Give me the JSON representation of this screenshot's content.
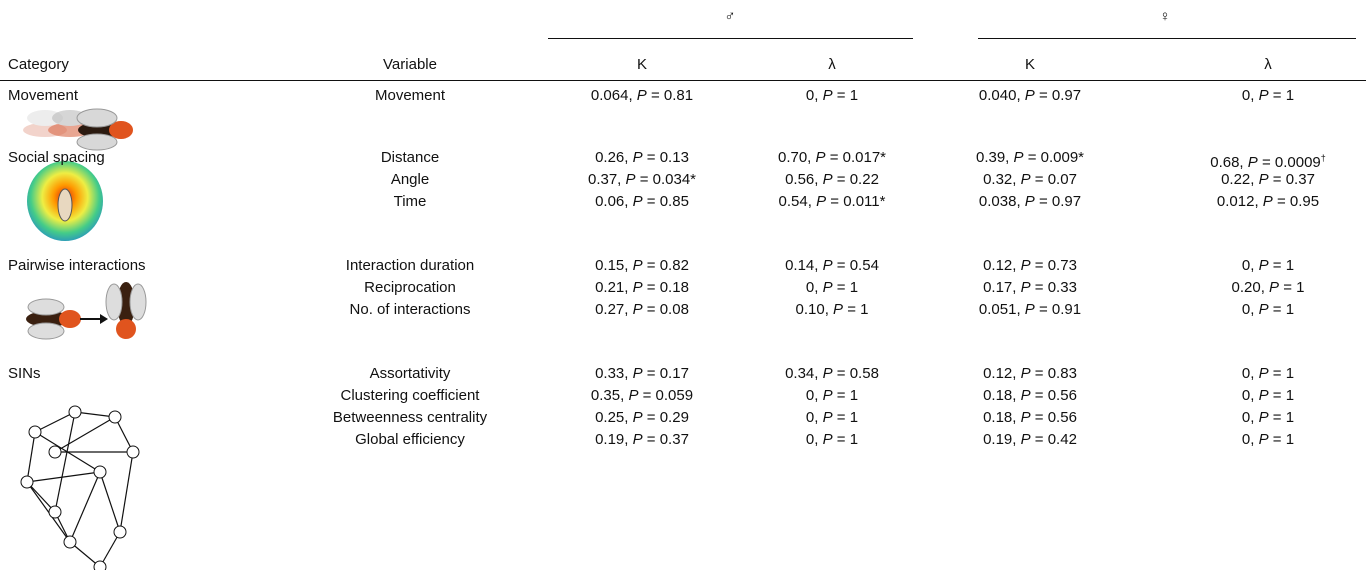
{
  "header": {
    "male": "♂",
    "female": "♀",
    "columns": [
      "Category",
      "Variable",
      "K",
      "λ",
      "K",
      "λ"
    ]
  },
  "groups": [
    {
      "category": "Movement",
      "rows": [
        {
          "variable": "Movement",
          "cells": [
            [
              "0.064, ",
              "P",
              " = 0.81"
            ],
            [
              "0, ",
              "P",
              " = 1"
            ],
            [
              "0.040, ",
              "P",
              " = 0.97"
            ],
            [
              "0, ",
              "P",
              " = 1"
            ]
          ]
        }
      ]
    },
    {
      "category": "Social spacing",
      "rows": [
        {
          "variable": "Distance",
          "cells": [
            [
              "0.26, ",
              "P",
              " = 0.13"
            ],
            [
              "0.70, ",
              "P",
              " = 0.017*"
            ],
            [
              "0.39, ",
              "P",
              " = 0.009*"
            ],
            [
              "0.68, ",
              "P",
              " = 0.0009",
              "†"
            ]
          ]
        },
        {
          "variable": "Angle",
          "cells": [
            [
              "0.37, ",
              "P",
              " = 0.034*"
            ],
            [
              "0.56, ",
              "P",
              " = 0.22"
            ],
            [
              "0.32, ",
              "P",
              " = 0.07"
            ],
            [
              "0.22, ",
              "P",
              " = 0.37"
            ]
          ]
        },
        {
          "variable": "Time",
          "cells": [
            [
              "0.06, ",
              "P",
              " = 0.85"
            ],
            [
              "0.54, ",
              "P",
              " = 0.011*"
            ],
            [
              "0.038, ",
              "P",
              " = 0.97"
            ],
            [
              "0.012, ",
              "P",
              " = 0.95"
            ]
          ]
        }
      ]
    },
    {
      "category": "Pairwise interactions",
      "rows": [
        {
          "variable": "Interaction duration",
          "cells": [
            [
              "0.15, ",
              "P",
              " = 0.82"
            ],
            [
              "0.14, ",
              "P",
              " = 0.54"
            ],
            [
              "0.12, ",
              "P",
              " = 0.73"
            ],
            [
              "0, ",
              "P",
              " = 1"
            ]
          ]
        },
        {
          "variable": "Reciprocation",
          "cells": [
            [
              "0.21, ",
              "P",
              " = 0.18"
            ],
            [
              "0, ",
              "P",
              " = 1"
            ],
            [
              "0.17, ",
              "P",
              " = 0.33"
            ],
            [
              "0.20, ",
              "P",
              " = 1"
            ]
          ]
        },
        {
          "variable": "No. of interactions",
          "cells": [
            [
              "0.27, ",
              "P",
              " = 0.08"
            ],
            [
              "0.10, ",
              "P",
              " = 1"
            ],
            [
              "0.051, ",
              "P",
              " = 0.91"
            ],
            [
              "0, ",
              "P",
              " = 1"
            ]
          ]
        }
      ]
    },
    {
      "category": "SINs",
      "rows": [
        {
          "variable": "Assortativity",
          "cells": [
            [
              "0.33, ",
              "P",
              " = 0.17"
            ],
            [
              "0.34, ",
              "P",
              " = 0.58"
            ],
            [
              "0.12, ",
              "P",
              " = 0.83"
            ],
            [
              "0, ",
              "P",
              " = 1"
            ]
          ]
        },
        {
          "variable": "Clustering coefficient",
          "cells": [
            [
              "0.35, ",
              "P",
              " = 0.059"
            ],
            [
              "0, ",
              "P",
              " = 1"
            ],
            [
              "0.18, ",
              "P",
              " = 0.56"
            ],
            [
              "0, ",
              "P",
              " = 1"
            ]
          ]
        },
        {
          "variable": "Betweenness centrality",
          "cells": [
            [
              "0.25, ",
              "P",
              " = 0.29"
            ],
            [
              "0, ",
              "P",
              " = 1"
            ],
            [
              "0.18, ",
              "P",
              " = 0.56"
            ],
            [
              "0, ",
              "P",
              " = 1"
            ]
          ]
        },
        {
          "variable": "Global efficiency",
          "cells": [
            [
              "0.19, ",
              "P",
              " = 0.37"
            ],
            [
              "0, ",
              "P",
              " = 1"
            ],
            [
              "0.19, ",
              "P",
              " = 0.42"
            ],
            [
              "0, ",
              "P",
              " = 1"
            ]
          ]
        }
      ]
    }
  ]
}
